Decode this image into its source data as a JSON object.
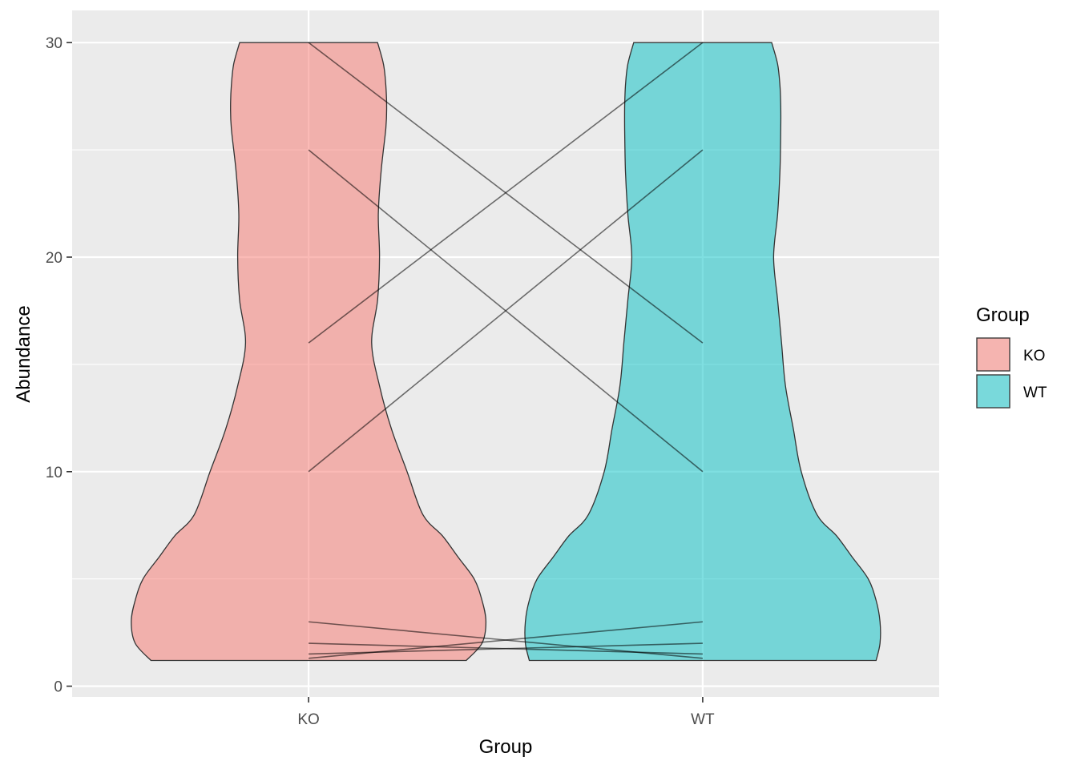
{
  "chart_data": {
    "type": "violin",
    "title": "",
    "xlabel": "Group",
    "ylabel": "Abundance",
    "categories": [
      "KO",
      "WT"
    ],
    "ylim": [
      -0.5,
      31.5
    ],
    "yticks": [
      0,
      10,
      20,
      30
    ],
    "ytick_labels": [
      "0",
      "10",
      "20",
      "30"
    ],
    "grid": true,
    "legend": {
      "title": "Group",
      "position": "right",
      "entries": [
        {
          "label": "KO",
          "color": "#F8766D"
        },
        {
          "label": "WT",
          "color": "#00BFC4"
        }
      ]
    },
    "series": [
      {
        "name": "KO",
        "color": "#F8766D",
        "violin_range": [
          1.2,
          30
        ],
        "violin_profile": [
          [
            1.2,
            0.4
          ],
          [
            2,
            0.44
          ],
          [
            3,
            0.45
          ],
          [
            4,
            0.44
          ],
          [
            5,
            0.42
          ],
          [
            6,
            0.38
          ],
          [
            7,
            0.34
          ],
          [
            8,
            0.29
          ],
          [
            10,
            0.25
          ],
          [
            12,
            0.21
          ],
          [
            14,
            0.18
          ],
          [
            16,
            0.16
          ],
          [
            18,
            0.175
          ],
          [
            20,
            0.18
          ],
          [
            22,
            0.177
          ],
          [
            24,
            0.184
          ],
          [
            26,
            0.196
          ],
          [
            27,
            0.198
          ],
          [
            28,
            0.196
          ],
          [
            29,
            0.19
          ],
          [
            30,
            0.175
          ]
        ]
      },
      {
        "name": "WT",
        "color": "#00BFC4",
        "violin_range": [
          1.2,
          30
        ],
        "violin_profile": [
          [
            1.2,
            0.44
          ],
          [
            2,
            0.45
          ],
          [
            3,
            0.45
          ],
          [
            4,
            0.44
          ],
          [
            5,
            0.42
          ],
          [
            6,
            0.38
          ],
          [
            7,
            0.34
          ],
          [
            8,
            0.29
          ],
          [
            10,
            0.25
          ],
          [
            12,
            0.23
          ],
          [
            14,
            0.21
          ],
          [
            16,
            0.2
          ],
          [
            18,
            0.19
          ],
          [
            20,
            0.18
          ],
          [
            22,
            0.19
          ],
          [
            24,
            0.196
          ],
          [
            26,
            0.198
          ],
          [
            27,
            0.198
          ],
          [
            28,
            0.196
          ],
          [
            29,
            0.19
          ],
          [
            30,
            0.175
          ]
        ]
      }
    ],
    "paired_lines": [
      {
        "KO": 30,
        "WT": 16
      },
      {
        "KO": 25,
        "WT": 10
      },
      {
        "KO": 16,
        "WT": 30
      },
      {
        "KO": 10,
        "WT": 25
      },
      {
        "KO": 3,
        "WT": 1.3
      },
      {
        "KO": 2,
        "WT": 1.5
      },
      {
        "KO": 1.5,
        "WT": 2
      },
      {
        "KO": 1.3,
        "WT": 3
      }
    ]
  }
}
